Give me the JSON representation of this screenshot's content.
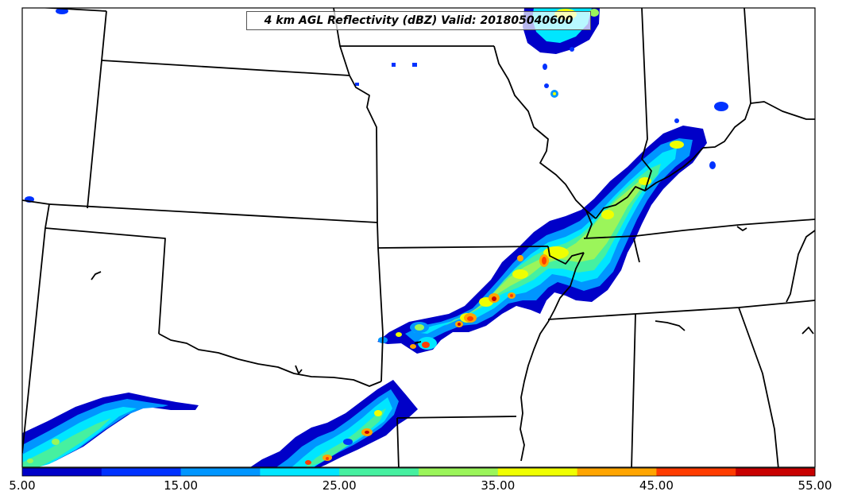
{
  "title": "4 km AGL Reflectivity (dBZ) Valid: 201805040600",
  "colorbar": {
    "min": 5,
    "max": 55,
    "colors": [
      "#0000c8",
      "#0032ff",
      "#0096ff",
      "#00e6ff",
      "#46f0a0",
      "#9bf55a",
      "#f0ff00",
      "#ffa500",
      "#ff3c00",
      "#c80000"
    ],
    "tick_labels": [
      "5.00",
      "15.00",
      "25.00",
      "35.00",
      "45.00",
      "55.00"
    ]
  },
  "colors": {
    "background": "#ffffff",
    "borders": "#000000"
  }
}
